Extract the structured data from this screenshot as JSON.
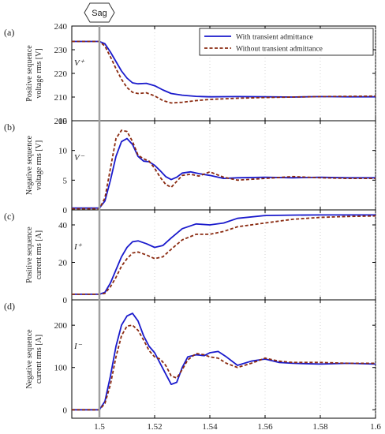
{
  "chart_data": [
    {
      "type": "line",
      "panel_label": "(a)",
      "symbol": "V⁺",
      "ylabel_line1": "Positive sequence",
      "ylabel_line2": "voltage rms [V]",
      "xlim": [
        1.49,
        1.6
      ],
      "ylim": [
        200,
        240
      ],
      "yticks": [
        "240",
        "230",
        "220",
        "210",
        "200"
      ],
      "legend": {
        "placement": "top-right",
        "entries": [
          "With transient admittance",
          "Without transient admittance"
        ]
      },
      "series": [
        {
          "name": "With transient admittance",
          "color": "#1a1acc",
          "x": [
            1.49,
            1.5,
            1.502,
            1.504,
            1.506,
            1.508,
            1.51,
            1.512,
            1.514,
            1.517,
            1.52,
            1.523,
            1.526,
            1.53,
            1.535,
            1.54,
            1.55,
            1.56,
            1.57,
            1.58,
            1.59,
            1.6
          ],
          "y": [
            233.5,
            233.5,
            232.5,
            229,
            225,
            221,
            218,
            216,
            215.6,
            215.8,
            214.8,
            213,
            211.5,
            210.8,
            210.3,
            210.1,
            210.2,
            210.1,
            210.0,
            210.2,
            210.1,
            210.1
          ]
        },
        {
          "name": "Without transient admittance",
          "color": "#8a2a10",
          "x": [
            1.49,
            1.5,
            1.502,
            1.504,
            1.506,
            1.508,
            1.51,
            1.512,
            1.514,
            1.517,
            1.52,
            1.523,
            1.526,
            1.53,
            1.535,
            1.54,
            1.55,
            1.56,
            1.57,
            1.58,
            1.59,
            1.6
          ],
          "y": [
            233.5,
            233.5,
            231.5,
            227,
            222,
            217.5,
            214,
            212,
            211.5,
            211.8,
            210.5,
            208.5,
            207.5,
            207.8,
            208.5,
            209.0,
            209.5,
            209.8,
            210.0,
            210.2,
            210.3,
            210.4
          ]
        }
      ]
    },
    {
      "type": "line",
      "panel_label": "(b)",
      "symbol": "V⁻",
      "ylabel_line1": "Negative sequence",
      "ylabel_line2": "voltage rms [V]",
      "xlim": [
        1.49,
        1.6
      ],
      "ylim": [
        0,
        15
      ],
      "yticks": [
        "15",
        "10",
        "5",
        "0"
      ],
      "series": [
        {
          "name": "With transient admittance",
          "color": "#1a1acc",
          "x": [
            1.49,
            1.5,
            1.502,
            1.504,
            1.506,
            1.508,
            1.51,
            1.512,
            1.514,
            1.516,
            1.518,
            1.52,
            1.522,
            1.524,
            1.526,
            1.528,
            1.53,
            1.533,
            1.536,
            1.54,
            1.545,
            1.55,
            1.56,
            1.57,
            1.58,
            1.59,
            1.6
          ],
          "y": [
            0.3,
            0.3,
            1.5,
            5,
            9,
            11.5,
            12,
            11,
            9,
            8.2,
            8.1,
            7.5,
            6.6,
            5.6,
            5.1,
            5.5,
            6.2,
            6.4,
            6.1,
            5.8,
            5.3,
            5.4,
            5.5,
            5.4,
            5.5,
            5.4,
            5.4
          ]
        },
        {
          "name": "Without transient admittance",
          "color": "#8a2a10",
          "x": [
            1.49,
            1.5,
            1.502,
            1.504,
            1.506,
            1.508,
            1.51,
            1.512,
            1.514,
            1.516,
            1.518,
            1.52,
            1.522,
            1.524,
            1.526,
            1.528,
            1.53,
            1.533,
            1.536,
            1.54,
            1.545,
            1.55,
            1.56,
            1.57,
            1.58,
            1.59,
            1.6
          ],
          "y": [
            0.2,
            0.2,
            2,
            7,
            12,
            13.4,
            13.2,
            11.5,
            9.2,
            8.6,
            8.2,
            7,
            5.5,
            4.3,
            3.8,
            4.8,
            5.8,
            6.0,
            5.7,
            6.4,
            5.5,
            5.0,
            5.3,
            5.6,
            5.4,
            5.3,
            5.3
          ]
        }
      ]
    },
    {
      "type": "line",
      "panel_label": "(c)",
      "symbol": "I⁺",
      "ylabel_line1": "Positive sequence",
      "ylabel_line2": "current rms [A]",
      "xlim": [
        1.49,
        1.6
      ],
      "ylim": [
        0,
        48
      ],
      "yticks": [
        "40",
        "20",
        "0"
      ],
      "series": [
        {
          "name": "With transient admittance",
          "color": "#1a1acc",
          "x": [
            1.49,
            1.5,
            1.502,
            1.504,
            1.506,
            1.508,
            1.51,
            1.512,
            1.514,
            1.517,
            1.52,
            1.523,
            1.526,
            1.53,
            1.535,
            1.54,
            1.545,
            1.55,
            1.56,
            1.57,
            1.58,
            1.59,
            1.6
          ],
          "y": [
            3,
            3,
            4,
            9,
            16,
            23,
            28,
            31,
            31.5,
            30,
            28,
            29,
            33,
            38,
            40.5,
            40,
            41,
            43.5,
            45,
            45.2,
            45.3,
            45.3,
            45.3
          ]
        },
        {
          "name": "Without transient admittance",
          "color": "#8a2a10",
          "x": [
            1.49,
            1.5,
            1.502,
            1.504,
            1.506,
            1.508,
            1.51,
            1.512,
            1.514,
            1.517,
            1.52,
            1.523,
            1.526,
            1.53,
            1.535,
            1.54,
            1.545,
            1.55,
            1.56,
            1.57,
            1.58,
            1.59,
            1.6
          ],
          "y": [
            3,
            3,
            3.5,
            7,
            12,
            18,
            22,
            25,
            25.5,
            24,
            22,
            23,
            27,
            32,
            35,
            35,
            36.5,
            39,
            41,
            43,
            44,
            44.5,
            44.8
          ]
        }
      ]
    },
    {
      "type": "line",
      "panel_label": "(d)",
      "symbol": "I⁻",
      "ylabel_line1": "Negative sequence",
      "ylabel_line2": "current rms [A]",
      "xlim": [
        1.49,
        1.6
      ],
      "ylim": [
        -20,
        260
      ],
      "yticks": [
        "200",
        "100",
        "0"
      ],
      "xticks": [
        "1.5",
        "1.52",
        "1.54",
        "1.56",
        "1.58",
        "1.6"
      ],
      "xlabel": "Time [s]",
      "series": [
        {
          "name": "With transient admittance",
          "color": "#1a1acc",
          "x": [
            1.49,
            1.5,
            1.502,
            1.504,
            1.506,
            1.508,
            1.51,
            1.512,
            1.514,
            1.516,
            1.518,
            1.52,
            1.522,
            1.524,
            1.526,
            1.528,
            1.53,
            1.532,
            1.535,
            1.538,
            1.54,
            1.543,
            1.546,
            1.55,
            1.555,
            1.56,
            1.565,
            1.57,
            1.58,
            1.59,
            1.6
          ],
          "y": [
            0,
            0,
            20,
            80,
            150,
            200,
            222,
            228,
            210,
            175,
            150,
            135,
            110,
            85,
            60,
            65,
            100,
            125,
            130,
            128,
            135,
            138,
            125,
            105,
            115,
            120,
            112,
            110,
            108,
            110,
            108
          ]
        },
        {
          "name": "Without transient admittance",
          "color": "#8a2a10",
          "x": [
            1.49,
            1.5,
            1.502,
            1.504,
            1.506,
            1.508,
            1.51,
            1.512,
            1.514,
            1.516,
            1.518,
            1.52,
            1.522,
            1.524,
            1.526,
            1.528,
            1.53,
            1.532,
            1.535,
            1.538,
            1.54,
            1.543,
            1.546,
            1.55,
            1.555,
            1.56,
            1.565,
            1.57,
            1.58,
            1.59,
            1.6
          ],
          "y": [
            0,
            0,
            15,
            60,
            125,
            175,
            198,
            200,
            188,
            165,
            140,
            125,
            120,
            105,
            80,
            75,
            95,
            118,
            133,
            130,
            125,
            122,
            110,
            100,
            110,
            122,
            115,
            112,
            112,
            110,
            110
          ]
        }
      ]
    }
  ],
  "sag_marker": {
    "label": "Sag",
    "x": 1.5
  }
}
